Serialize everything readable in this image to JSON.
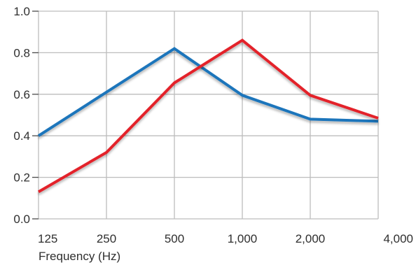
{
  "chart_data": {
    "type": "line",
    "title": "",
    "xlabel": "Frequency (Hz)",
    "ylabel": "",
    "categories": [
      "125",
      "250",
      "500",
      "1,000",
      "2,000",
      "4,000"
    ],
    "x_scale": "log",
    "ylim": [
      0.0,
      1.0
    ],
    "yticks": [
      "0.0",
      "0.2",
      "0.4",
      "0.6",
      "0.8",
      "1.0"
    ],
    "grid": true,
    "legend": "none",
    "series": [
      {
        "color": "#1a74bb",
        "values": [
          0.4,
          0.61,
          0.82,
          0.595,
          0.48,
          0.47
        ]
      },
      {
        "color": "#e3232a",
        "values": [
          0.13,
          0.32,
          0.655,
          0.86,
          0.595,
          0.485
        ]
      }
    ]
  }
}
